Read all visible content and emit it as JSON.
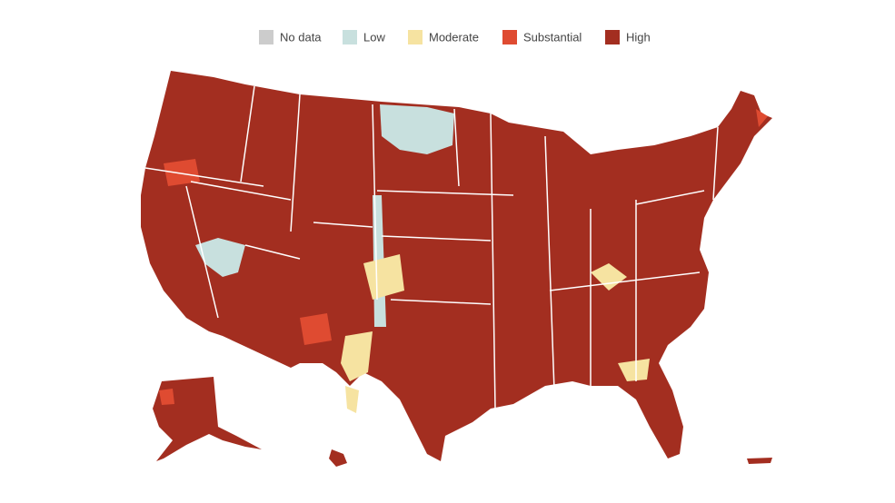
{
  "legend": {
    "items": [
      {
        "label": "No data",
        "color": "#cccccc"
      },
      {
        "label": "Low",
        "color": "#c8e0de"
      },
      {
        "label": "Moderate",
        "color": "#f6e3a1"
      },
      {
        "label": "Substantial",
        "color": "#df4b31"
      },
      {
        "label": "High",
        "color": "#a32e20"
      }
    ]
  }
}
